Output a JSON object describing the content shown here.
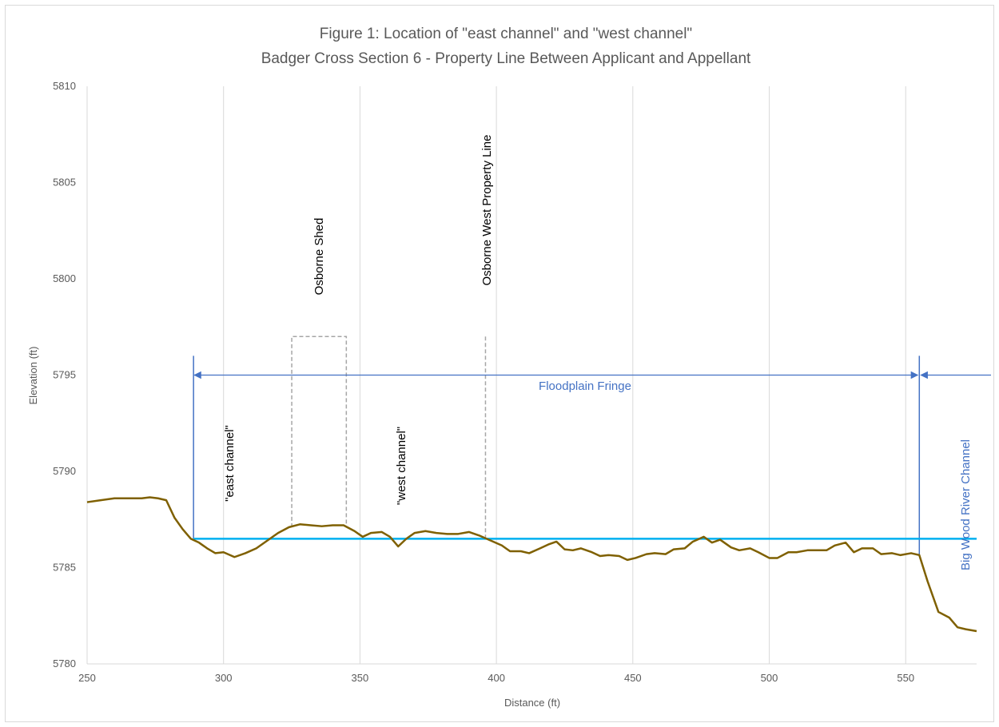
{
  "chart_data": {
    "type": "line",
    "title": "Figure 1: Location of \"east channel\" and \"west channel\"",
    "subtitle": "Badger Cross Section 6 - Property Line Between Applicant and Appellant",
    "xlabel": "Distance (ft)",
    "ylabel": "Elevation (ft)",
    "xlim": [
      250,
      576
    ],
    "ylim": [
      5780,
      5810
    ],
    "x_ticks": [
      "250",
      "300",
      "350",
      "400",
      "450",
      "500",
      "550"
    ],
    "y_ticks": [
      "5780",
      "5785",
      "5790",
      "5795",
      "5800",
      "5805",
      "5810"
    ],
    "grid": "vertical gridlines",
    "colors": {
      "ground": "#7f6000",
      "water": "#00b0f0",
      "annotation_blue": "#4472c4",
      "gridline": "#d9d9d9",
      "dashed": "#a6a6a6"
    },
    "series": [
      {
        "values": [
          [
            250,
            5788.4
          ],
          [
            255,
            5788.5
          ],
          [
            260,
            5788.6
          ],
          [
            265,
            5788.6
          ],
          [
            270,
            5788.6
          ],
          [
            273,
            5788.65
          ],
          [
            276,
            5788.6
          ],
          [
            279,
            5788.5
          ],
          [
            282,
            5787.6
          ],
          [
            285,
            5787.0
          ],
          [
            288,
            5786.5
          ],
          [
            291,
            5786.3
          ],
          [
            294,
            5786.0
          ],
          [
            297,
            5785.75
          ],
          [
            300,
            5785.8
          ],
          [
            304,
            5785.55
          ],
          [
            308,
            5785.75
          ],
          [
            312,
            5786.0
          ],
          [
            316,
            5786.4
          ],
          [
            320,
            5786.8
          ],
          [
            324,
            5787.1
          ],
          [
            328,
            5787.25
          ],
          [
            332,
            5787.2
          ],
          [
            336,
            5787.15
          ],
          [
            340,
            5787.2
          ],
          [
            344,
            5787.2
          ],
          [
            348,
            5786.9
          ],
          [
            351,
            5786.6
          ],
          [
            354,
            5786.8
          ],
          [
            358,
            5786.85
          ],
          [
            361,
            5786.6
          ],
          [
            364,
            5786.1
          ],
          [
            367,
            5786.5
          ],
          [
            370,
            5786.8
          ],
          [
            374,
            5786.9
          ],
          [
            378,
            5786.8
          ],
          [
            382,
            5786.75
          ],
          [
            386,
            5786.75
          ],
          [
            390,
            5786.85
          ],
          [
            394,
            5786.65
          ],
          [
            398,
            5786.4
          ],
          [
            402,
            5786.15
          ],
          [
            405,
            5785.85
          ],
          [
            409,
            5785.85
          ],
          [
            412,
            5785.75
          ],
          [
            416,
            5786.0
          ],
          [
            419,
            5786.2
          ],
          [
            422,
            5786.35
          ],
          [
            425,
            5785.95
          ],
          [
            428,
            5785.9
          ],
          [
            431,
            5786.0
          ],
          [
            435,
            5785.8
          ],
          [
            438,
            5785.6
          ],
          [
            441,
            5785.65
          ],
          [
            445,
            5785.6
          ],
          [
            448,
            5785.4
          ],
          [
            451,
            5785.5
          ],
          [
            455,
            5785.7
          ],
          [
            458,
            5785.75
          ],
          [
            462,
            5785.7
          ],
          [
            465,
            5785.95
          ],
          [
            469,
            5786.0
          ],
          [
            472,
            5786.35
          ],
          [
            476,
            5786.6
          ],
          [
            479,
            5786.3
          ],
          [
            482,
            5786.45
          ],
          [
            486,
            5786.05
          ],
          [
            489,
            5785.9
          ],
          [
            493,
            5786.0
          ],
          [
            496,
            5785.8
          ],
          [
            500,
            5785.5
          ],
          [
            503,
            5785.5
          ],
          [
            507,
            5785.8
          ],
          [
            510,
            5785.8
          ],
          [
            514,
            5785.9
          ],
          [
            517,
            5785.9
          ],
          [
            521,
            5785.9
          ],
          [
            524,
            5786.15
          ],
          [
            528,
            5786.3
          ],
          [
            531,
            5785.8
          ],
          [
            534,
            5786.0
          ],
          [
            538,
            5786.0
          ],
          [
            541,
            5785.7
          ],
          [
            545,
            5785.75
          ],
          [
            548,
            5785.65
          ],
          [
            552,
            5785.75
          ],
          [
            555,
            5785.65
          ],
          [
            558,
            5784.3
          ],
          [
            562,
            5782.7
          ],
          [
            566,
            5782.4
          ],
          [
            569,
            5781.9
          ],
          [
            572,
            5781.8
          ],
          [
            576,
            5781.7
          ]
        ]
      },
      {
        "values": [
          [
            289,
            5786.5
          ],
          [
            576,
            5786.5
          ]
        ]
      }
    ],
    "annotations": {
      "east_channel": "\"east channel\"",
      "west_channel": "\"west channel\"",
      "osborne_shed": "Osborne Shed",
      "osborne_property_line": "Osborne West Property Line",
      "floodplain_fringe": "Floodplain Fringe",
      "big_wood_river_channel": "Big Wood River Channel"
    },
    "markers": {
      "shed_x": [
        325,
        345
      ],
      "shed_top": 5797,
      "property_line_x": 396,
      "property_line_top": 5797,
      "fringe_left_x": 289,
      "fringe_right_x": 555,
      "fringe_marker_top": 5796,
      "fringe_arrow_y": 5795
    }
  }
}
